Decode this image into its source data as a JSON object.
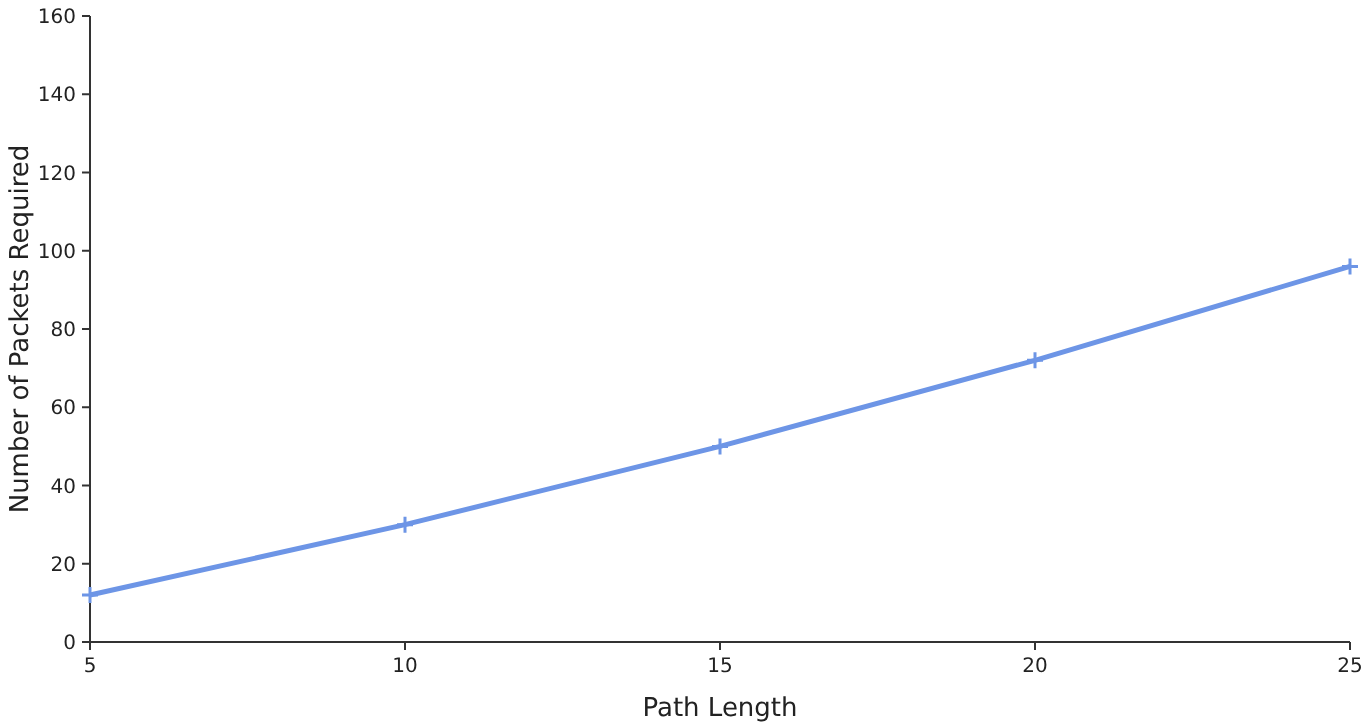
{
  "chart_data": {
    "type": "line",
    "xlabel": "Path Length",
    "ylabel": "Number of Packets Required",
    "x": [
      5,
      10,
      15,
      20,
      25
    ],
    "series": [
      {
        "color": "#6d95e6",
        "values": [
          12,
          30,
          50,
          72,
          96
        ]
      }
    ],
    "xlim": [
      5,
      25
    ],
    "xticks": [
      5,
      10,
      15,
      20,
      25
    ],
    "ylim": [
      0,
      160
    ],
    "yticks": [
      0,
      20,
      40,
      60,
      80,
      100,
      120,
      140,
      160
    ],
    "grid": false,
    "marker": "cross",
    "line_style": "solid"
  }
}
